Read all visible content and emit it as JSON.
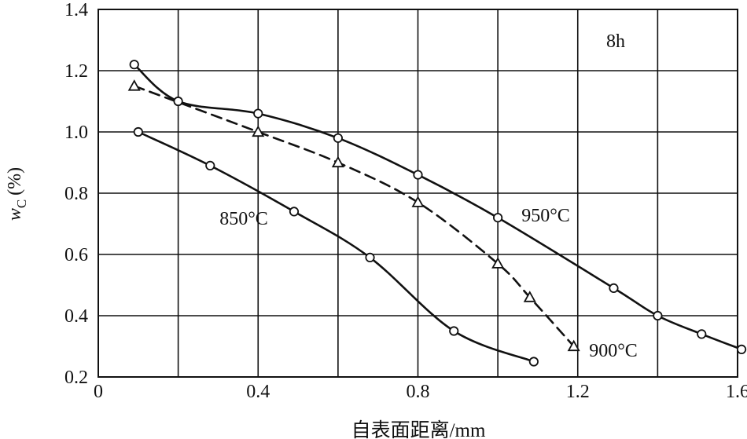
{
  "chart_data": {
    "type": "line",
    "title": "",
    "annotation": "8h",
    "xlabel": "自表面距离/mm",
    "ylabel_main": "w",
    "ylabel_sub": "C",
    "ylabel_unit": "(%)",
    "xlim": [
      0,
      1.6
    ],
    "ylim": [
      0.2,
      1.4
    ],
    "xticks": [
      0,
      0.4,
      0.8,
      1.2,
      1.6
    ],
    "xtick_labels": [
      "0",
      "0.4",
      "0.8",
      "1.2",
      "1.6"
    ],
    "yticks": [
      0.2,
      0.4,
      0.6,
      0.8,
      1.0,
      1.2,
      1.4
    ],
    "ytick_labels": [
      "0.2",
      "0.4",
      "0.6",
      "0.8",
      "1.0",
      "1.2",
      "1.4"
    ],
    "grid": true,
    "series": [
      {
        "name": "850°C",
        "marker": "circle",
        "dash": "solid",
        "x": [
          0.1,
          0.28,
          0.49,
          0.68,
          0.89,
          1.09
        ],
        "y": [
          1.0,
          0.89,
          0.74,
          0.59,
          0.35,
          0.25
        ]
      },
      {
        "name": "900°C",
        "marker": "triangle",
        "dash": "dashed",
        "x": [
          0.09,
          0.4,
          0.6,
          0.8,
          1.0,
          1.08,
          1.19
        ],
        "y": [
          1.15,
          1.0,
          0.9,
          0.77,
          0.57,
          0.46,
          0.3
        ]
      },
      {
        "name": "950°C",
        "marker": "circle",
        "dash": "solid",
        "x": [
          0.09,
          0.2,
          0.4,
          0.6,
          0.8,
          1.0,
          1.29,
          1.4,
          1.51,
          1.61
        ],
        "y": [
          1.22,
          1.1,
          1.06,
          0.98,
          0.86,
          0.72,
          0.49,
          0.4,
          0.34,
          0.29
        ]
      }
    ]
  }
}
